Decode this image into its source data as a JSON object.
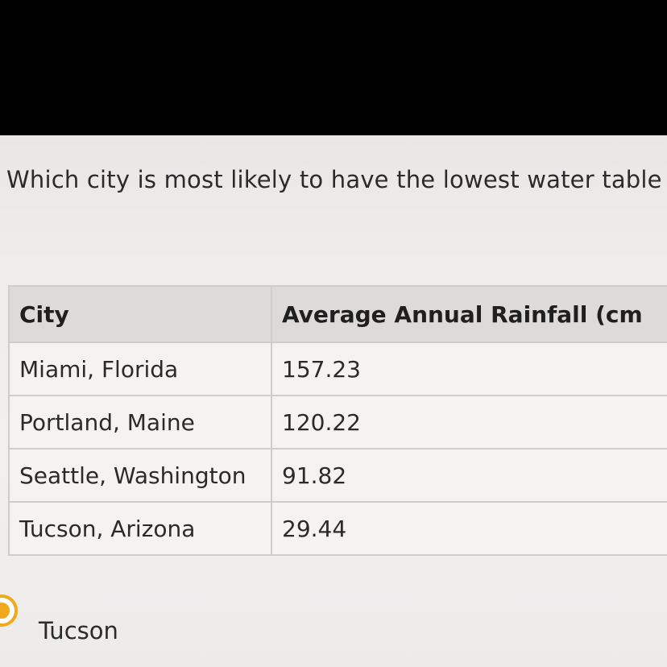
{
  "question": "Which city is most likely to have the lowest water table",
  "table": {
    "headers": [
      "City",
      "Average Annual Rainfall (cm"
    ],
    "rows": [
      {
        "city": "Miami, Florida",
        "rainfall": "157.23"
      },
      {
        "city": "Portland, Maine",
        "rainfall": "120.22"
      },
      {
        "city": "Seattle, Washington",
        "rainfall": "91.82"
      },
      {
        "city": "Tucson, Arizona",
        "rainfall": "29.44"
      }
    ]
  },
  "answer": {
    "label": "Tucson",
    "selected": true,
    "accent_color": "#f0a81d"
  }
}
